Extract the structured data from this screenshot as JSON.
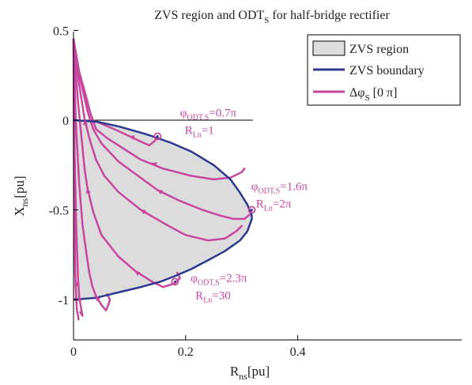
{
  "chart_data": {
    "type": "line",
    "title": "ZVS region and ODT",
    "title_sub": "S",
    "title_suffix": " for half-bridge rectifier",
    "xlabel": "R",
    "xlabel_sub": "ns",
    "xlabel_unit": "[pu]",
    "ylabel": "X",
    "ylabel_sub": "ns",
    "ylabel_unit": "[pu]",
    "xlim": [
      0,
      0.55
    ],
    "ylim": [
      -1.15,
      0.5
    ],
    "xticks": [
      "0",
      "0.2",
      "0.4"
    ],
    "yticks": [
      "0.5",
      "0",
      "-0.5",
      "-1"
    ],
    "grid": false,
    "legend": {
      "position": "top-right",
      "entries": [
        {
          "name": "ZVS region"
        },
        {
          "name": "ZVS boundary"
        },
        {
          "name": "Δφ",
          "sub": "S",
          "suffix": " [0  π]"
        }
      ]
    },
    "colors": {
      "region_fill": "#dcdcdc",
      "boundary": "#2b3990",
      "trajectory": "#c8479e",
      "axis": "#000000"
    },
    "zvs_boundary": {
      "x": [
        0.0,
        0.0425,
        0.08,
        0.1275,
        0.15,
        0.173,
        0.21,
        0.25,
        0.28,
        0.296,
        0.31,
        0.318,
        0.318,
        0.31,
        0.297,
        0.27,
        0.24,
        0.21,
        0.18,
        0.155,
        0.12,
        0.08,
        0.04,
        0.0
      ],
      "y": [
        0.0,
        -0.0087,
        -0.0345,
        -0.0764,
        -0.1,
        -0.125,
        -0.175,
        -0.25,
        -0.33,
        -0.4,
        -0.47,
        -0.53,
        -0.55,
        -0.62,
        -0.67,
        -0.73,
        -0.78,
        -0.83,
        -0.87,
        -0.9,
        -0.93,
        -0.96,
        -0.99,
        -1.0
      ]
    },
    "trajectories": [
      {
        "x": [
          0.0,
          0.007,
          0.019,
          0.027,
          0.034,
          0.05,
          0.065,
          0.08,
          0.1,
          0.12,
          0.135,
          0.145,
          0.15
        ],
        "y": [
          0.45,
          0.3,
          0.15,
          0.07,
          0.0,
          -0.02,
          -0.04,
          -0.06,
          -0.09,
          -0.12,
          -0.14,
          -0.115,
          -0.09
        ]
      },
      {
        "x": [
          0.0,
          0.01,
          0.02,
          0.03,
          0.04,
          0.06,
          0.09,
          0.12,
          0.16,
          0.21,
          0.25,
          0.28,
          0.3,
          0.305
        ],
        "y": [
          0.45,
          0.27,
          0.16,
          0.04,
          -0.05,
          -0.1,
          -0.16,
          -0.22,
          -0.27,
          -0.31,
          -0.33,
          -0.32,
          -0.29,
          -0.27
        ]
      },
      {
        "x": [
          0.0,
          0.012,
          0.025,
          0.035,
          0.05,
          0.08,
          0.115,
          0.15,
          0.19,
          0.23,
          0.26,
          0.285,
          0.305,
          0.315,
          0.318
        ],
        "y": [
          0.45,
          0.23,
          0.05,
          -0.05,
          -0.13,
          -0.23,
          -0.31,
          -0.39,
          -0.45,
          -0.5,
          -0.53,
          -0.55,
          -0.55,
          -0.525,
          -0.5
        ]
      },
      {
        "x": [
          0.0,
          0.01,
          0.02,
          0.03,
          0.04,
          0.055,
          0.08,
          0.12,
          0.17,
          0.2,
          0.24,
          0.27,
          0.29,
          0.3
        ],
        "y": [
          0.45,
          0.2,
          0.0,
          -0.12,
          -0.22,
          -0.31,
          -0.4,
          -0.5,
          -0.59,
          -0.64,
          -0.67,
          -0.66,
          -0.62,
          -0.59
        ]
      },
      {
        "x": [
          0.0,
          0.008,
          0.015,
          0.02,
          0.025,
          0.035,
          0.05,
          0.08,
          0.11,
          0.14,
          0.16,
          0.18,
          0.19,
          0.185
        ],
        "y": [
          0.45,
          0.1,
          -0.12,
          -0.28,
          -0.38,
          -0.51,
          -0.64,
          -0.76,
          -0.84,
          -0.9,
          -0.93,
          -0.91,
          -0.88,
          -0.85
        ]
      },
      {
        "x": [
          0.0,
          0.004,
          0.01,
          0.016,
          0.022,
          0.028,
          0.034,
          0.04,
          0.05,
          0.058,
          0.062,
          0.065,
          0.06
        ],
        "y": [
          0.45,
          0.0,
          -0.35,
          -0.58,
          -0.72,
          -0.85,
          -0.93,
          -0.98,
          -1.03,
          -1.06,
          -1.03,
          -1.0,
          -0.97
        ]
      },
      {
        "x": [
          0.0,
          0.002,
          0.005,
          0.008,
          0.01,
          0.013,
          0.016,
          0.012
        ],
        "y": [
          0.45,
          -0.2,
          -0.6,
          -0.88,
          -0.98,
          -1.04,
          -1.09,
          -1.07
        ]
      },
      {
        "x": [
          0.0,
          0.001,
          0.003,
          0.005,
          0.006,
          0.008,
          0.009
        ],
        "y": [
          0.45,
          -0.4,
          -0.85,
          -1.0,
          -1.06,
          -1.09,
          -1.11
        ]
      }
    ],
    "hline": {
      "y": 0,
      "x": [
        0,
        0.32
      ]
    },
    "markers": [
      {
        "x": 0.15,
        "y": -0.09
      },
      {
        "x": 0.318,
        "y": -0.5
      },
      {
        "x": 0.181,
        "y": -0.9
      }
    ],
    "arrows": [
      {
        "x": 0.1,
        "y": -0.09,
        "dx": 1,
        "dy": -0.9
      },
      {
        "x": 0.14,
        "y": -0.24,
        "dx": 1,
        "dy": -0.9
      },
      {
        "x": 0.15,
        "y": -0.39,
        "dx": 1,
        "dy": -1.6
      },
      {
        "x": 0.12,
        "y": -0.5,
        "dx": 1,
        "dy": -1.8
      },
      {
        "x": 0.11,
        "y": -0.84,
        "dx": 1,
        "dy": -2.6
      },
      {
        "x": 0.04,
        "y": -0.98,
        "dx": 1,
        "dy": -5
      },
      {
        "x": 0.01,
        "y": -0.98,
        "dx": 1,
        "dy": -25
      },
      {
        "x": 0.005,
        "y": -0.9,
        "dx": 1,
        "dy": -80
      },
      {
        "x": 0.025,
        "y": -0.38,
        "dx": 1,
        "dy": -20
      },
      {
        "x": 0.02,
        "y": -0.0,
        "dx": 1,
        "dy": -20
      }
    ],
    "annotations": [
      {
        "phi": "φ",
        "phi_sub": "ODT,S",
        "phi_val": "=0.7π",
        "r": "R",
        "r_sub": "Ln",
        "r_val": "=1",
        "x": 0.19,
        "y": 0.02
      },
      {
        "phi": "φ",
        "phi_sub": "ODT,S",
        "phi_val": "=1.6π",
        "r": "R",
        "r_sub": "Ln",
        "r_val": "=2π",
        "x": 0.317,
        "y": -0.39
      },
      {
        "phi": "φ",
        "phi_sub": "ODT,S",
        "phi_val": "=2.3π",
        "r": "R",
        "r_sub": "Ln",
        "r_val": "=30",
        "x": 0.209,
        "y": -0.9
      }
    ]
  }
}
